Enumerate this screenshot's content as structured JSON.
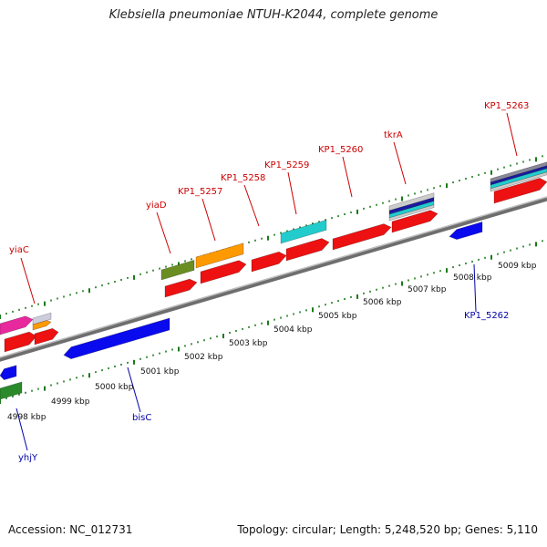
{
  "title": "Klebsiella pneumoniae NTUH-K2044, complete genome",
  "footer": {
    "accession": "Accession: NC_012731",
    "summary": "Topology: circular; Length: 5,248,520 bp; Genes: 5,110"
  },
  "scale_labels": [
    "4998 kbp",
    "4999 kbp",
    "5000 kbp",
    "5001 kbp",
    "5002 kbp",
    "5003 kbp",
    "5004 kbp",
    "5005 kbp",
    "5006 kbp",
    "5007 kbp",
    "5008 kbp",
    "5009 kbp"
  ],
  "colors": {
    "label_red": "#cc0000",
    "label_blue": "#0000aa",
    "tick_green": "#1a7a1a",
    "backbone": "#8a8a8a"
  },
  "gene_labels": [
    {
      "text": "yiaC",
      "strand": "forward"
    },
    {
      "text": "yiaD",
      "strand": "forward"
    },
    {
      "text": "KP1_5257",
      "strand": "forward"
    },
    {
      "text": "KP1_5258",
      "strand": "forward"
    },
    {
      "text": "KP1_5259",
      "strand": "forward"
    },
    {
      "text": "KP1_5260",
      "strand": "forward"
    },
    {
      "text": "tkrA",
      "strand": "forward"
    },
    {
      "text": "KP1_5263",
      "strand": "forward"
    },
    {
      "text": "KP1_5262",
      "strand": "reverse"
    },
    {
      "text": "bisC",
      "strand": "reverse"
    },
    {
      "text": "yhjY",
      "strand": "reverse"
    }
  ]
}
